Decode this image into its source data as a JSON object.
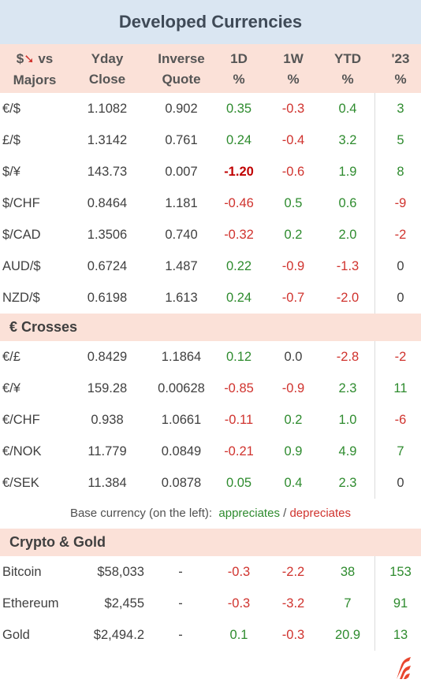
{
  "title": "Developed Currencies",
  "header": {
    "pair_prefix": "$",
    "pair_suffix": " vs\nMajors",
    "columns": [
      "Yday\nClose",
      "Inverse\nQuote",
      "1D\n%",
      "1W\n%",
      "YTD\n%",
      "'23\n%"
    ]
  },
  "majors": [
    {
      "pair": "€/$",
      "close": "1.1082",
      "inverse": "0.902",
      "d1": "0.35",
      "w1": "-0.3",
      "ytd": "0.4",
      "y23": "3"
    },
    {
      "pair": "£/$",
      "close": "1.3142",
      "inverse": "0.761",
      "d1": "0.24",
      "w1": "-0.4",
      "ytd": "3.2",
      "y23": "5"
    },
    {
      "pair": "$/¥",
      "close": "143.73",
      "inverse": "0.007",
      "d1": "-1.20",
      "w1": "-0.6",
      "ytd": "1.9",
      "y23": "8"
    },
    {
      "pair": "$/CHF",
      "close": "0.8464",
      "inverse": "1.181",
      "d1": "-0.46",
      "w1": "0.5",
      "ytd": "0.6",
      "y23": "-9"
    },
    {
      "pair": "$/CAD",
      "close": "1.3506",
      "inverse": "0.740",
      "d1": "-0.32",
      "w1": "0.2",
      "ytd": "2.0",
      "y23": "-2"
    },
    {
      "pair": "AUD/$",
      "close": "0.6724",
      "inverse": "1.487",
      "d1": "0.22",
      "w1": "-0.9",
      "ytd": "-1.3",
      "y23": "0"
    },
    {
      "pair": "NZD/$",
      "close": "0.6198",
      "inverse": "1.613",
      "d1": "0.24",
      "w1": "-0.7",
      "ytd": "-2.0",
      "y23": "0"
    }
  ],
  "crosses_title": "€ Crosses",
  "crosses": [
    {
      "pair": "€/£",
      "close": "0.8429",
      "inverse": "1.1864",
      "d1": "0.12",
      "w1": "0.0",
      "ytd": "-2.8",
      "y23": "-2"
    },
    {
      "pair": "€/¥",
      "close": "159.28",
      "inverse": "0.00628",
      "d1": "-0.85",
      "w1": "-0.9",
      "ytd": "2.3",
      "y23": "11"
    },
    {
      "pair": "€/CHF",
      "close": "0.938",
      "inverse": "1.0661",
      "d1": "-0.11",
      "w1": "0.2",
      "ytd": "1.0",
      "y23": "-6"
    },
    {
      "pair": "€/NOK",
      "close": "11.779",
      "inverse": "0.0849",
      "d1": "-0.21",
      "w1": "0.9",
      "ytd": "4.9",
      "y23": "7"
    },
    {
      "pair": "€/SEK",
      "close": "11.384",
      "inverse": "0.0878",
      "d1": "0.05",
      "w1": "0.4",
      "ytd": "2.3",
      "y23": "0"
    }
  ],
  "note": {
    "prefix": "Base currency (on the left):",
    "appreciates": "appreciates",
    "slash": "/",
    "depreciates": "depreciates"
  },
  "crypto_title": "Crypto & Gold",
  "crypto": [
    {
      "pair": "Bitcoin",
      "close": "$58,033",
      "inverse": "-",
      "d1": "-0.3",
      "w1": "-2.2",
      "ytd": "38",
      "y23": "153"
    },
    {
      "pair": "Ethereum",
      "close": "$2,455",
      "inverse": "-",
      "d1": "-0.3",
      "w1": "-3.2",
      "ytd": "7",
      "y23": "91"
    },
    {
      "pair": "Gold",
      "close": "$2,494.2",
      "inverse": "-",
      "d1": "0.1",
      "w1": "-0.3",
      "ytd": "20.9",
      "y23": "13"
    }
  ],
  "colors": {
    "positive": "#2e8b2e",
    "negative": "#d0332e",
    "header_bg": "#fbe1d8",
    "title_bg": "#dae6f2"
  },
  "icons": {
    "header_arrow": "red-down-arrow-icon",
    "logo": "brand-logo-icon"
  }
}
